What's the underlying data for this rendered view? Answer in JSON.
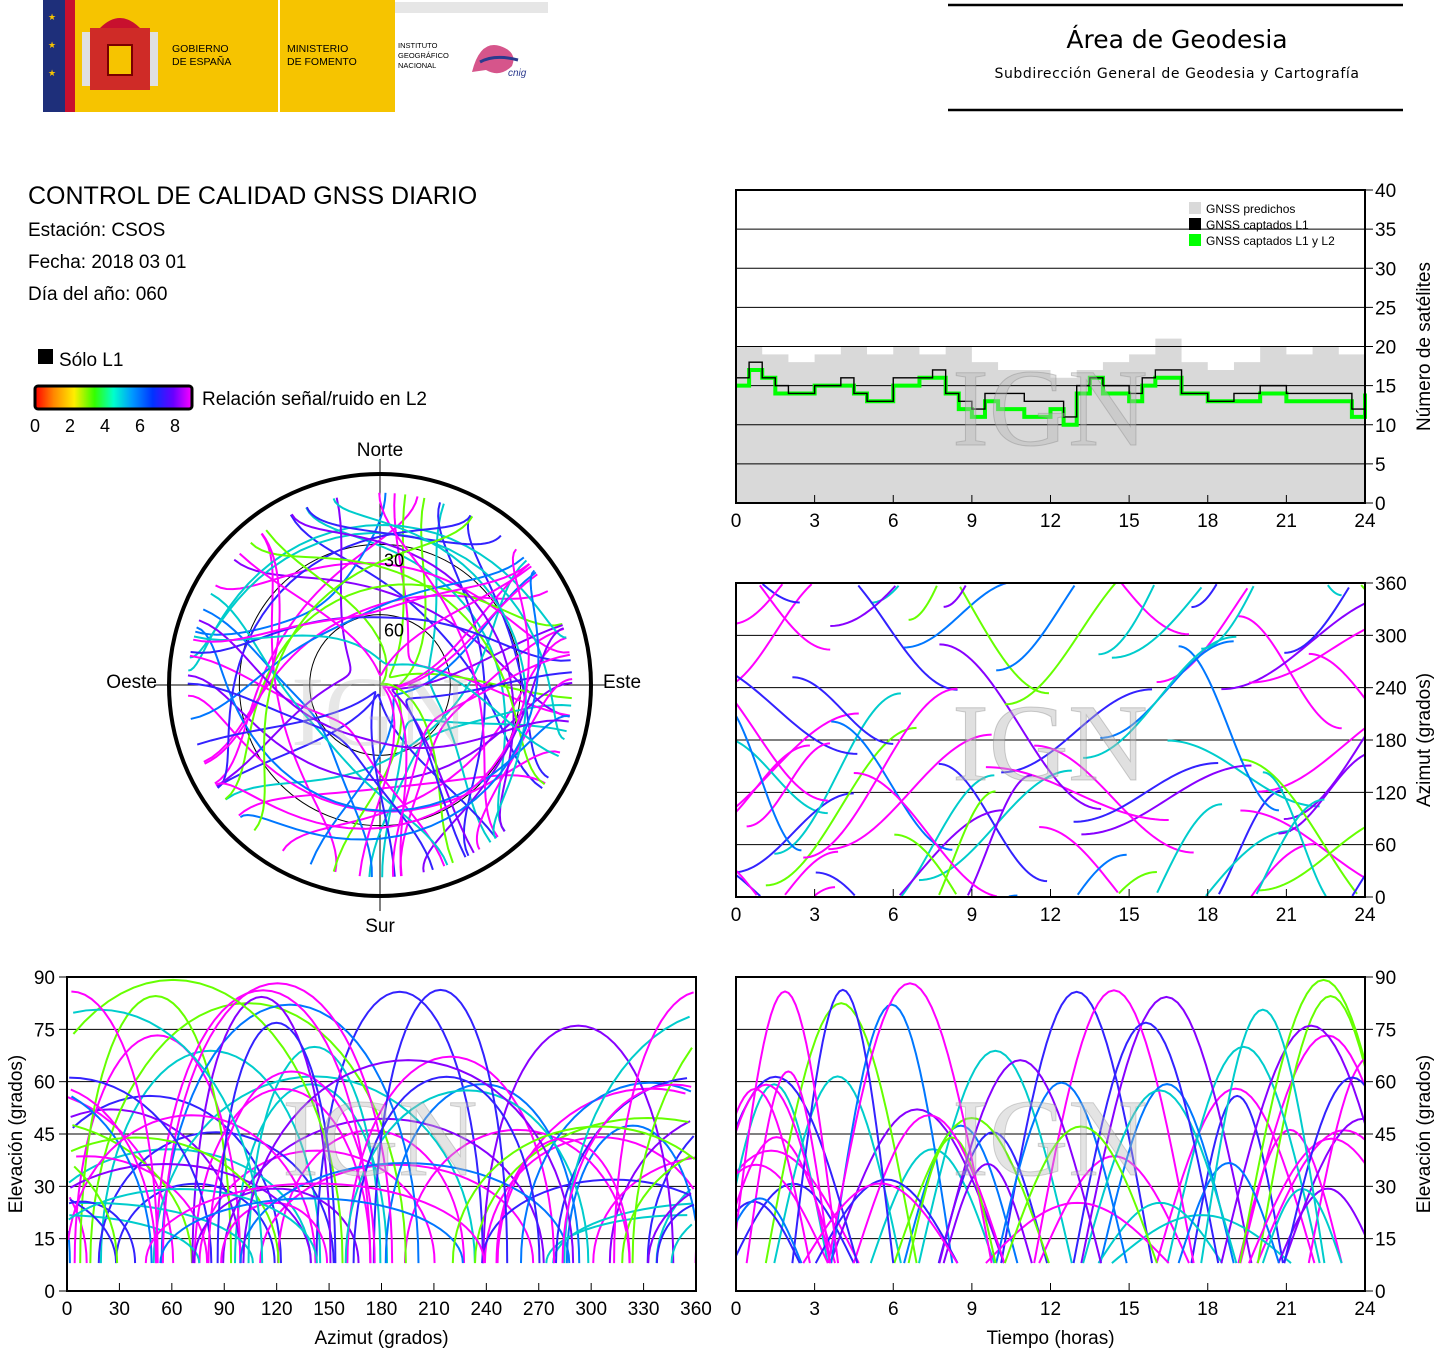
{
  "header": {
    "gobierno": [
      "GOBIERNO",
      "DE ESPAÑA"
    ],
    "ministerio": [
      "MINISTERIO",
      "DE FOMENTO"
    ],
    "instituto": [
      "INSTITUTO",
      "GEOGRÁFICO",
      "NACIONAL"
    ],
    "cnig": "cnig",
    "area_title": "Área de Geodesia",
    "area_subtitle": "Subdirección General de Geodesia y Cartografía",
    "colors": {
      "yellow": "#f6c400",
      "red": "#c8102e",
      "navy": "#1e2f7a"
    }
  },
  "report": {
    "title": "CONTROL DE CALIDAD GNSS DIARIO",
    "station": "Estación: CSOS",
    "date": "Fecha: 2018 03 01",
    "doy": "Día del año: 060"
  },
  "legend": {
    "l1_only": "Sólo L1",
    "snr_label": "Relación señal/ruido en L2",
    "snr_ticks": [
      "0",
      "2",
      "4",
      "6",
      "8"
    ],
    "snr_colors": [
      "#ff0000",
      "#ff8800",
      "#ffee00",
      "#33ff00",
      "#00ffcc",
      "#0099ff",
      "#0033ff",
      "#6600ff",
      "#ff00ff"
    ]
  },
  "watermark": "IGN",
  "chart_data": [
    {
      "id": "skyplot",
      "type": "scatter",
      "projection": "polar",
      "directions": {
        "north": "Norte",
        "south": "Sur",
        "east": "Este",
        "west": "Oeste"
      },
      "ring_labels": [
        "30",
        "60"
      ],
      "rings_elevation_deg": [
        30,
        60
      ],
      "l1_only_color": "#000000"
    },
    {
      "id": "satellites",
      "type": "area",
      "ylabel": "Número de satélites",
      "xlim": [
        0,
        24
      ],
      "ylim": [
        0,
        40
      ],
      "x_ticks": [
        "0",
        "3",
        "6",
        "9",
        "12",
        "15",
        "18",
        "21",
        "24"
      ],
      "y_ticks": [
        "0",
        "5",
        "10",
        "15",
        "20",
        "25",
        "30",
        "35",
        "40"
      ],
      "legend": [
        "GNSS predichos",
        "GNSS captados L1",
        "GNSS captados L1 y L2"
      ],
      "colors": {
        "predicted": "#d9d9d9",
        "l1": "#000000",
        "l1l2": "#00ff00"
      },
      "series": [
        {
          "name": "GNSS predichos",
          "x": [
            0,
            1,
            2,
            3,
            4,
            5,
            6,
            7,
            8,
            9,
            10,
            11,
            12,
            13,
            14,
            15,
            16,
            17,
            18,
            19,
            20,
            21,
            22,
            23,
            24
          ],
          "values": [
            20,
            19,
            18,
            19,
            20,
            19,
            20,
            19,
            20,
            18,
            17,
            17,
            16,
            17,
            18,
            19,
            21,
            18,
            17,
            18,
            20,
            19,
            20,
            19,
            19
          ]
        },
        {
          "name": "GNSS captados L1",
          "x": [
            0,
            0.5,
            1,
            1.5,
            2,
            3,
            4,
            4.5,
            5,
            6,
            7,
            7.5,
            8,
            8.5,
            9,
            9.5,
            10,
            11,
            12,
            12.5,
            13,
            13.5,
            14,
            15,
            15.5,
            16,
            16.5,
            17,
            18,
            19,
            20,
            21,
            22,
            23,
            23.5,
            24
          ],
          "values": [
            16,
            18,
            16,
            15,
            14,
            15,
            16,
            14,
            13,
            16,
            16,
            17,
            14,
            13,
            12,
            14,
            14,
            13,
            13,
            11,
            15,
            16,
            15,
            14,
            16,
            17,
            17,
            14,
            13,
            14,
            15,
            14,
            14,
            14,
            12,
            15
          ]
        },
        {
          "name": "GNSS captados L1 y L2",
          "x": [
            0,
            0.5,
            1,
            1.5,
            2,
            3,
            4,
            4.5,
            5,
            6,
            7,
            7.5,
            8,
            8.5,
            9,
            9.5,
            10,
            11,
            12,
            12.5,
            13,
            13.5,
            14,
            15,
            15.5,
            16,
            16.5,
            17,
            18,
            19,
            20,
            21,
            22,
            23,
            23.5,
            24
          ],
          "values": [
            15,
            17,
            16,
            14,
            14,
            15,
            15,
            14,
            13,
            15,
            16,
            16,
            14,
            12,
            11,
            13,
            12,
            11,
            12,
            10,
            14,
            16,
            14,
            13,
            15,
            16,
            16,
            14,
            13,
            13,
            14,
            13,
            13,
            13,
            11,
            14
          ]
        }
      ]
    },
    {
      "id": "azimuth_time",
      "type": "scatter",
      "ylabel": "Azimut (grados)",
      "xlim": [
        0,
        24
      ],
      "ylim": [
        0,
        360
      ],
      "x_ticks": [
        "0",
        "3",
        "6",
        "9",
        "12",
        "15",
        "18",
        "21",
        "24"
      ],
      "y_ticks": [
        "0",
        "60",
        "120",
        "180",
        "240",
        "300",
        "360"
      ]
    },
    {
      "id": "elev_azimuth",
      "type": "scatter",
      "xlabel": "Azimut (grados)",
      "ylabel": "Elevación (grados)",
      "xlim": [
        0,
        360
      ],
      "ylim": [
        0,
        90
      ],
      "x_ticks": [
        "0",
        "30",
        "60",
        "90",
        "120",
        "150",
        "180",
        "210",
        "240",
        "270",
        "300",
        "330",
        "360"
      ],
      "y_ticks": [
        "0",
        "15",
        "30",
        "45",
        "60",
        "75",
        "90"
      ]
    },
    {
      "id": "elev_time",
      "type": "line",
      "xlabel": "Tiempo (horas)",
      "ylabel": "Elevación (grados)",
      "xlim": [
        0,
        24
      ],
      "ylim": [
        0,
        90
      ],
      "x_ticks": [
        "0",
        "3",
        "6",
        "9",
        "12",
        "15",
        "18",
        "21",
        "24"
      ],
      "y_ticks": [
        "0",
        "15",
        "30",
        "45",
        "60",
        "75",
        "90"
      ]
    }
  ]
}
